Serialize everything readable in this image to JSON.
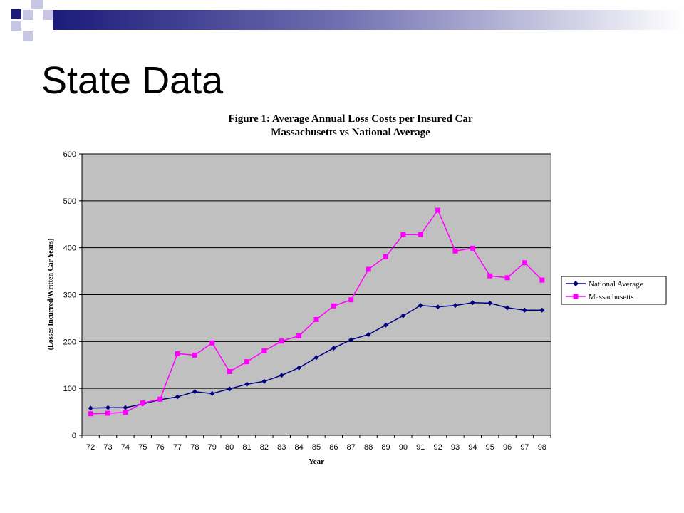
{
  "slide": {
    "title": "State Data"
  },
  "colors": {
    "deco_dark": "#1b1b7a",
    "deco_light": "#c6c6e4",
    "plot_background": "#c0c0c0",
    "national": "#000080",
    "massachusetts": "#ff00ff"
  },
  "chart_data": {
    "type": "line",
    "title": "Figure 1: Average Annual Loss Costs per Insured Car",
    "subtitle": "Massachusetts vs National Average",
    "xlabel": "Year",
    "ylabel": "(Losses Incurred/Written Car Years)",
    "ylim": [
      0,
      600
    ],
    "yticks": [
      0,
      100,
      200,
      300,
      400,
      500,
      600
    ],
    "grid": true,
    "legend_position": "right",
    "categories": [
      "72",
      "73",
      "74",
      "75",
      "76",
      "77",
      "78",
      "79",
      "80",
      "81",
      "82",
      "83",
      "84",
      "85",
      "86",
      "87",
      "88",
      "89",
      "90",
      "91",
      "92",
      "93",
      "94",
      "95",
      "96",
      "97",
      "98"
    ],
    "series": [
      {
        "name": "National Average",
        "marker": "diamond",
        "color": "#000080",
        "values": [
          58,
          59,
          59,
          67,
          76,
          82,
          93,
          89,
          99,
          109,
          115,
          128,
          144,
          166,
          186,
          204,
          215,
          235,
          255,
          277,
          274,
          277,
          283,
          282,
          272,
          267,
          267
        ]
      },
      {
        "name": "Massachusetts",
        "marker": "square",
        "color": "#ff00ff",
        "values": [
          46,
          47,
          49,
          69,
          77,
          174,
          171,
          197,
          136,
          157,
          180,
          201,
          212,
          247,
          276,
          289,
          354,
          381,
          428,
          428,
          480,
          393,
          399,
          340,
          336,
          368,
          331
        ]
      }
    ]
  }
}
